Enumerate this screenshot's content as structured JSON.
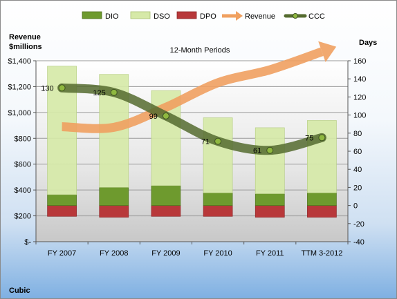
{
  "chart_data": {
    "type": "bar",
    "title": "12-Month Periods",
    "company": "Cubic",
    "left_axis_title": [
      "Revenue",
      "$millions"
    ],
    "right_axis_title": "Days",
    "left_ylim": [
      0,
      1400
    ],
    "left_ticks": [
      "$-",
      "$200",
      "$400",
      "$600",
      "$800",
      "$1,000",
      "$1,200",
      "$1,400"
    ],
    "right_ylim": [
      -40,
      160
    ],
    "right_ticks": [
      "-40",
      "-20",
      "0",
      "20",
      "40",
      "60",
      "80",
      "100",
      "120",
      "140",
      "160"
    ],
    "categories": [
      "FY 2007",
      "FY 2008",
      "FY 2009",
      "FY 2010",
      "FY 2011",
      "TTM 3-2012"
    ],
    "legend": [
      "DIO",
      "DSO",
      "DPO",
      "Revenue",
      "CCC"
    ],
    "legend_position": "top",
    "grid": true,
    "series": [
      {
        "name": "DIO",
        "axis": "right",
        "values": [
          12,
          20,
          22,
          14,
          13,
          14
        ]
      },
      {
        "name": "DSO",
        "axis": "right",
        "values": [
          142,
          125,
          105,
          83,
          73,
          80
        ]
      },
      {
        "name": "DPO",
        "axis": "right",
        "values": [
          -12,
          -13,
          -12,
          -12,
          -13,
          -13
        ]
      },
      {
        "name": "Revenue",
        "axis": "left",
        "values": [
          890,
          885,
          1040,
          1230,
          1330,
          1470
        ]
      },
      {
        "name": "CCC",
        "axis": "right",
        "values": [
          130,
          125,
          99,
          71,
          61,
          75
        ]
      }
    ],
    "ccc_labels": [
      "130",
      "125",
      "99",
      "71",
      "61",
      "75"
    ],
    "colors": {
      "DIO": "#6e9a2e",
      "DSO": "#d6e9a8",
      "DPO": "#b8383a",
      "Revenue": "#f0a060",
      "CCC": "#556b2f"
    }
  }
}
